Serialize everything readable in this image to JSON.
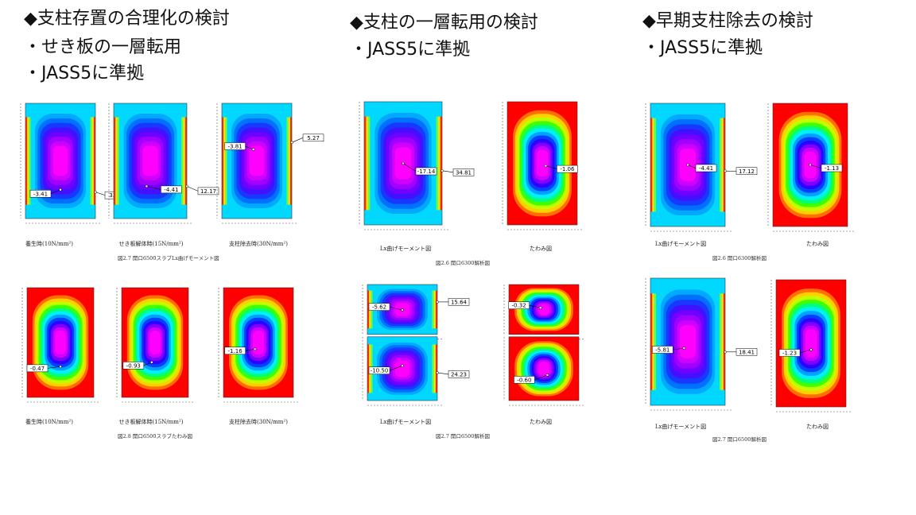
{
  "columns": [
    {
      "title": "◆支柱存置の合理化の検討",
      "bullets": [
        "・せき板の一層転用",
        "・JASS5に準拠"
      ],
      "figures": [
        {
          "caption": "図2.7 開口6500スラブLx曲げモーメント図",
          "panels": [
            {
              "label": "養生時(10N/mm²)",
              "callouts": [
                "-3.41",
                "3.64"
              ]
            },
            {
              "label": "せき板解体時(15N/mm²)",
              "callouts": [
                "-4.41",
                "12.17"
              ]
            },
            {
              "label": "支柱除去時(30N/mm²)",
              "callouts": [
                "-3.81",
                "5.27"
              ]
            }
          ]
        },
        {
          "caption": "図2.8 開口6500スラブたわみ図",
          "panels": [
            {
              "label": "養生時(10N/mm²)",
              "callouts": [
                "-0.47"
              ]
            },
            {
              "label": "せき板解体時(15N/mm²)",
              "callouts": [
                "-0.93"
              ]
            },
            {
              "label": "支柱除去時(30N/mm²)",
              "callouts": [
                "-1.16"
              ]
            }
          ]
        }
      ]
    },
    {
      "title": "◆支柱の一層転用の検討",
      "bullets": [
        "・JASS5に準拠"
      ],
      "figures": [
        {
          "caption": "図2.6 開口6300解析図",
          "panels": [
            {
              "label": "Lx曲げモーメント図",
              "callouts": [
                "-17.14",
                "34.81"
              ]
            },
            {
              "label": "たわみ図",
              "callouts": [
                "-1.06"
              ]
            }
          ]
        },
        {
          "caption": "図2.7 開口6500解析図",
          "panels": [
            {
              "label": "Lx曲げモーメント図",
              "callouts": [
                "-5.62",
                "15.64",
                "-10.50",
                "24.23"
              ]
            },
            {
              "label": "たわみ図",
              "callouts": [
                "-0.32",
                "-0.60"
              ]
            }
          ]
        }
      ]
    },
    {
      "title": "◆早期支柱除去の検討",
      "bullets": [
        "・JASS5に準拠"
      ],
      "figures": [
        {
          "caption": "図2.6 開口6300解析図",
          "panels": [
            {
              "label": "Lx曲げモーメント図",
              "callouts": [
                "-4.41",
                "17.12"
              ]
            },
            {
              "label": "たわみ図",
              "callouts": [
                "-1.13"
              ]
            }
          ]
        },
        {
          "caption": "図2.7 開口6500解析図",
          "panels": [
            {
              "label": "Lx曲げモーメント図",
              "callouts": [
                "-5.81",
                "18.41"
              ]
            },
            {
              "label": "たわみ図",
              "callouts": [
                "-1.23"
              ]
            }
          ]
        }
      ]
    }
  ]
}
